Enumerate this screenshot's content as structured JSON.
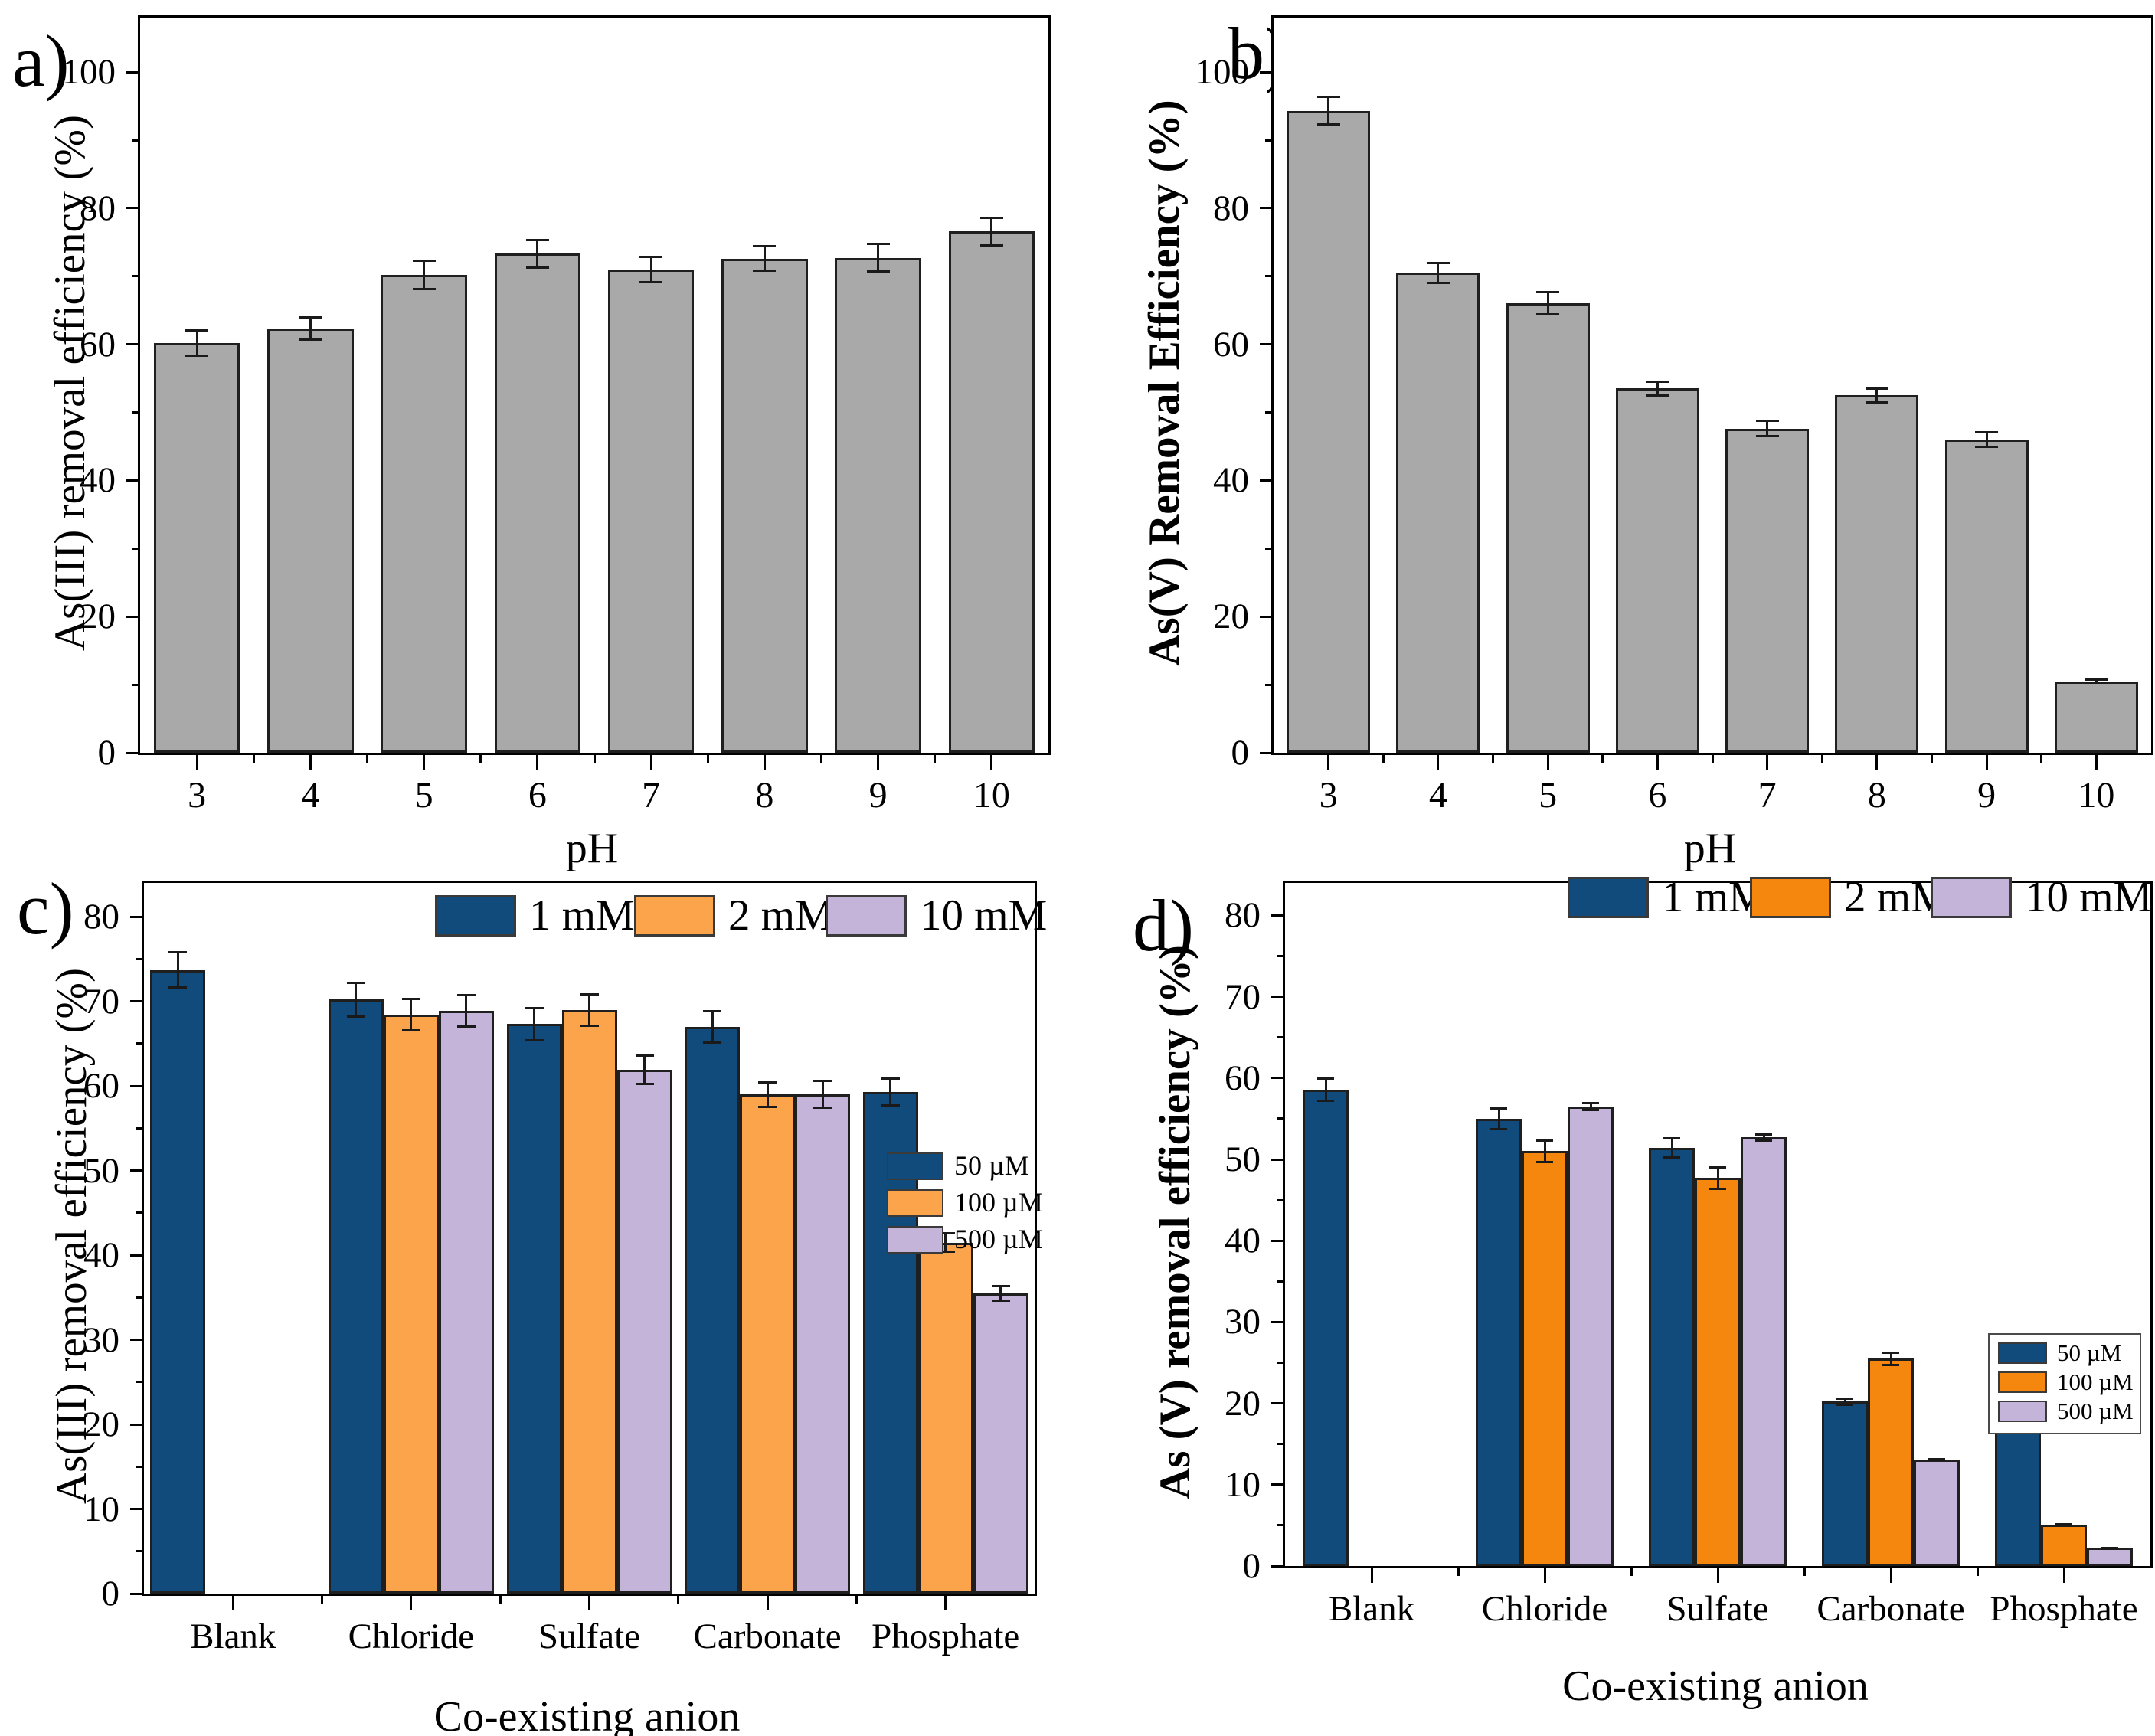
{
  "figure": {
    "background": "#ffffff",
    "text_color": "#000000",
    "axis_color": "#000000",
    "error_bar_color": "#1a1a1a"
  },
  "chart_data": [
    {
      "panel": "a",
      "panel_label": "a)",
      "type": "bar",
      "xlabel": "pH",
      "ylabel": "As(III) removal efficiency (%)",
      "categories": [
        "3",
        "4",
        "5",
        "6",
        "7",
        "8",
        "9",
        "10"
      ],
      "values": [
        60.2,
        62.3,
        70.2,
        73.3,
        71.0,
        72.6,
        72.7,
        76.6
      ],
      "errors": [
        2.0,
        1.8,
        2.2,
        2.2,
        2.0,
        2.0,
        2.2,
        2.2
      ],
      "bar_color": "#A9A9A9",
      "ylim": [
        0,
        108
      ],
      "yticks": [
        0,
        20,
        40,
        60,
        80,
        100
      ],
      "yminor": [
        10,
        30,
        50,
        70,
        90
      ],
      "grid": false,
      "legend_position": "none"
    },
    {
      "panel": "b",
      "panel_label": "b)",
      "type": "bar",
      "xlabel": "pH",
      "ylabel": "As(V) Removal Efficiency (%)",
      "categories": [
        "3",
        "4",
        "5",
        "6",
        "7",
        "8",
        "9",
        "10"
      ],
      "values": [
        94.3,
        70.5,
        66.0,
        53.5,
        47.6,
        52.5,
        46.0,
        10.5
      ],
      "errors": [
        2.2,
        1.6,
        1.8,
        1.2,
        1.3,
        1.2,
        1.2,
        0.4
      ],
      "bar_color": "#A9A9A9",
      "ylim": [
        0,
        108
      ],
      "yticks": [
        0,
        20,
        40,
        60,
        80,
        100
      ],
      "yminor": [
        10,
        30,
        50,
        70,
        90
      ],
      "grid": false,
      "legend_position": "none"
    },
    {
      "panel": "c",
      "panel_label": "c)",
      "type": "bar",
      "xlabel": "Co-existing anion",
      "ylabel": "As(III) removal efficiency (%)",
      "categories": [
        "Blank",
        "Chloride",
        "Sulfate",
        "Carbonate",
        "Phosphate"
      ],
      "series": [
        {
          "name": "1 mM",
          "color": "#114B7B",
          "values": [
            73.7,
            70.2,
            67.3,
            67.0,
            59.3
          ],
          "errors": [
            2.2,
            2.1,
            2.0,
            2.0,
            1.7
          ]
        },
        {
          "name": "2 mM",
          "color": "#FBA44C",
          "values": [
            null,
            68.4,
            69.0,
            59.0,
            41.5
          ],
          "errors": [
            null,
            2.0,
            2.0,
            1.6,
            1.2
          ]
        },
        {
          "name": "10 mM",
          "color": "#C4B4DA",
          "values": [
            null,
            68.9,
            61.9,
            59.0,
            35.5
          ],
          "errors": [
            null,
            2.0,
            1.8,
            1.7,
            1.0
          ]
        }
      ],
      "ylim": [
        0,
        84
      ],
      "yticks": [
        0,
        10,
        20,
        30,
        40,
        50,
        60,
        70,
        80
      ],
      "yminor": [
        5,
        15,
        25,
        35,
        45,
        55,
        65,
        75
      ],
      "grid": false,
      "legend_top": [
        "1 mM",
        "2 mM",
        "10 mM"
      ],
      "legend_top_position": "top-inside",
      "legend_inner": [
        "50 µM",
        "100 µM",
        "500 µM"
      ],
      "legend_inner_position": "middle-right",
      "legend_inner_boxed": false
    },
    {
      "panel": "d",
      "panel_label": "d)",
      "type": "bar",
      "xlabel": "Co-existing anion",
      "ylabel": "As (V) removal efficiency (%)",
      "categories": [
        "Blank",
        "Chloride",
        "Sulfate",
        "Carbonate",
        "Phosphate"
      ],
      "series": [
        {
          "name": "1 mM",
          "color": "#114B7B",
          "values": [
            58.6,
            55.0,
            51.4,
            20.2,
            17.0
          ],
          "errors": [
            1.5,
            1.4,
            1.3,
            0.5,
            0.3
          ]
        },
        {
          "name": "2 mM",
          "color": "#F5870F",
          "values": [
            null,
            51.0,
            47.7,
            25.5,
            5.1
          ],
          "errors": [
            null,
            1.5,
            1.5,
            0.9,
            0.2
          ]
        },
        {
          "name": "10 mM",
          "color": "#C4B4DA",
          "values": [
            null,
            56.5,
            52.7,
            13.1,
            2.3
          ],
          "errors": [
            null,
            0.6,
            0.5,
            0.2,
            0.1
          ]
        }
      ],
      "ylim": [
        0,
        84
      ],
      "yticks": [
        0,
        10,
        20,
        30,
        40,
        50,
        60,
        70,
        80
      ],
      "yminor": [
        5,
        15,
        25,
        35,
        45,
        55,
        65,
        75
      ],
      "grid": false,
      "legend_top": [
        "1 mM",
        "2 mM",
        "10 mM"
      ],
      "legend_top_position": "top-inside",
      "legend_inner": [
        "50 µM",
        "100 µM",
        "500 µM"
      ],
      "legend_inner_position": "lower-right",
      "legend_inner_boxed": true
    }
  ]
}
